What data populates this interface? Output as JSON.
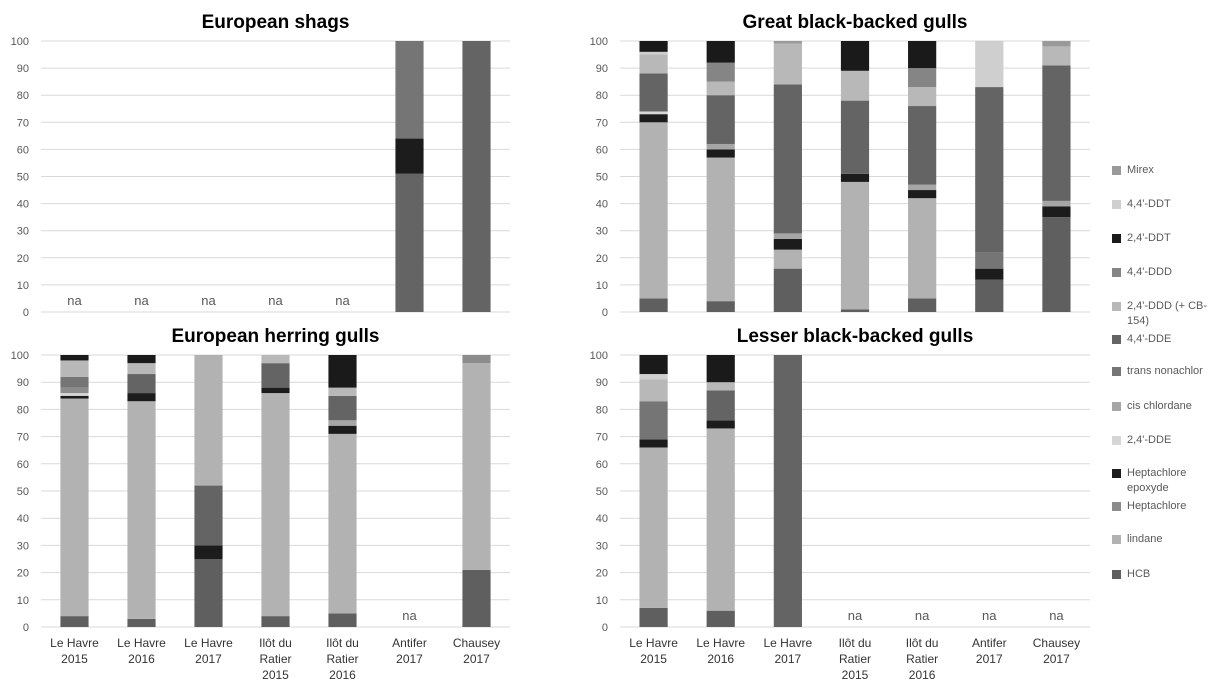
{
  "colors": {
    "HCB": "#5f5f5f",
    "lindane": "#b2b2b2",
    "Heptachlore": "#8c8c8c",
    "Heptachlore epoxyde": "#1c1c1c",
    "2,4'-DDE": "#d6d6d6",
    "cis chlordane": "#a6a6a6",
    "trans nonachlor": "#757575",
    "4,4'-DDE": "#646464",
    "2,4'-DDD (+ CB-154)": "#b8b8b8",
    "4,4'-DDD": "#858585",
    "2,4'-DDT": "#1a1a1a",
    "4,4'-DDT": "#cfcfcf",
    "Mirex": "#9a9a9a",
    "text": "#595959",
    "title": "#000000",
    "grid": "#d9d9d9"
  },
  "legend": [
    {
      "key": "Mirex",
      "label": "Mirex"
    },
    {
      "key": "4,4'-DDT",
      "label": "4,4'-DDT"
    },
    {
      "key": "2,4'-DDT",
      "label": "2,4'-DDT"
    },
    {
      "key": "4,4'-DDD",
      "label": "4,4'-DDD"
    },
    {
      "key": "2,4'-DDD (+ CB-154)",
      "label": "2,4'-DDD (+ CB-154)"
    },
    {
      "key": "4,4'-DDE",
      "label": "4,4'-DDE"
    },
    {
      "key": "trans nonachlor",
      "label": "trans nonachlor"
    },
    {
      "key": "cis chlordane",
      "label": "cis chlordane"
    },
    {
      "key": "2,4'-DDE",
      "label": "2,4'-DDE"
    },
    {
      "key": "Heptachlore epoxyde",
      "label": "Heptachlore epoxyde"
    },
    {
      "key": "Heptachlore",
      "label": "Heptachlore"
    },
    {
      "key": "lindane",
      "label": "lindane"
    },
    {
      "key": "HCB",
      "label": "HCB"
    }
  ],
  "chart_data": [
    {
      "type": "bar",
      "stacked": true,
      "title": "European shags",
      "ylim": [
        0,
        100
      ],
      "yticks": [
        0,
        10,
        20,
        30,
        40,
        50,
        60,
        70,
        80,
        90,
        100
      ],
      "grid": true,
      "legend_position": "right",
      "categories": [
        "Le Havre 2015",
        "Le Havre 2016",
        "Le Havre 2017",
        "Ilôt du Ratier 2015",
        "Ilôt du Ratier 2016",
        "Antifer 2017",
        "Chausey 2017"
      ],
      "show_xlabels": false,
      "na_label": "na",
      "bars": [
        {
          "category": "Le Havre 2015",
          "na": true,
          "segments": []
        },
        {
          "category": "Le Havre 2016",
          "na": true,
          "segments": []
        },
        {
          "category": "Le Havre 2017",
          "na": true,
          "segments": []
        },
        {
          "category": "Ilôt du Ratier 2015",
          "na": true,
          "segments": []
        },
        {
          "category": "Ilôt du Ratier 2016",
          "na": true,
          "segments": []
        },
        {
          "category": "Antifer 2017",
          "na": false,
          "segments": [
            {
              "series": "4,4'-DDE",
              "value": 51
            },
            {
              "series": "Heptachlore epoxyde",
              "value": 13
            },
            {
              "series": "trans nonachlor",
              "value": 36
            }
          ]
        },
        {
          "category": "Chausey 2017",
          "na": false,
          "segments": [
            {
              "series": "4,4'-DDE",
              "value": 100
            }
          ]
        }
      ]
    },
    {
      "type": "bar",
      "stacked": true,
      "title": "Great black-backed gulls",
      "ylim": [
        0,
        100
      ],
      "yticks": [
        0,
        10,
        20,
        30,
        40,
        50,
        60,
        70,
        80,
        90,
        100
      ],
      "grid": true,
      "legend_position": "right",
      "categories": [
        "Le Havre 2015",
        "Le Havre 2016",
        "Le Havre 2017",
        "Ilôt du Ratier 2015",
        "Ilôt du Ratier 2016",
        "Antifer 2017",
        "Chausey 2017"
      ],
      "show_xlabels": false,
      "na_label": "na",
      "bars": [
        {
          "category": "Le Havre 2015",
          "na": false,
          "segments": [
            {
              "series": "HCB",
              "value": 5
            },
            {
              "series": "lindane",
              "value": 65
            },
            {
              "series": "Heptachlore epoxyde",
              "value": 3
            },
            {
              "series": "2,4'-DDE",
              "value": 1
            },
            {
              "series": "4,4'-DDE",
              "value": 14
            },
            {
              "series": "2,4'-DDD (+ CB-154)",
              "value": 7
            },
            {
              "series": "4,4'-DDT",
              "value": 1
            },
            {
              "series": "2,4'-DDT",
              "value": 4
            }
          ]
        },
        {
          "category": "Le Havre 2016",
          "na": false,
          "segments": [
            {
              "series": "HCB",
              "value": 4
            },
            {
              "series": "lindane",
              "value": 53
            },
            {
              "series": "Heptachlore epoxyde",
              "value": 3
            },
            {
              "series": "cis chlordane",
              "value": 2
            },
            {
              "series": "4,4'-DDE",
              "value": 18
            },
            {
              "series": "2,4'-DDD (+ CB-154)",
              "value": 5
            },
            {
              "series": "4,4'-DDD",
              "value": 7
            },
            {
              "series": "2,4'-DDT",
              "value": 8
            }
          ]
        },
        {
          "category": "Le Havre 2017",
          "na": false,
          "segments": [
            {
              "series": "HCB",
              "value": 16
            },
            {
              "series": "lindane",
              "value": 7
            },
            {
              "series": "Heptachlore epoxyde",
              "value": 4
            },
            {
              "series": "cis chlordane",
              "value": 2
            },
            {
              "series": "4,4'-DDE",
              "value": 55
            },
            {
              "series": "2,4'-DDD (+ CB-154)",
              "value": 15
            },
            {
              "series": "Mirex",
              "value": 1
            }
          ]
        },
        {
          "category": "Ilôt du Ratier 2015",
          "na": false,
          "segments": [
            {
              "series": "HCB",
              "value": 1
            },
            {
              "series": "lindane",
              "value": 47
            },
            {
              "series": "Heptachlore epoxyde",
              "value": 3
            },
            {
              "series": "4,4'-DDE",
              "value": 27
            },
            {
              "series": "2,4'-DDD (+ CB-154)",
              "value": 11
            },
            {
              "series": "2,4'-DDT",
              "value": 11
            }
          ]
        },
        {
          "category": "Ilôt du Ratier 2016",
          "na": false,
          "segments": [
            {
              "series": "HCB",
              "value": 5
            },
            {
              "series": "lindane",
              "value": 37
            },
            {
              "series": "Heptachlore epoxyde",
              "value": 3
            },
            {
              "series": "cis chlordane",
              "value": 2
            },
            {
              "series": "4,4'-DDE",
              "value": 29
            },
            {
              "series": "2,4'-DDD (+ CB-154)",
              "value": 7
            },
            {
              "series": "4,4'-DDD",
              "value": 7
            },
            {
              "series": "2,4'-DDT",
              "value": 10
            }
          ]
        },
        {
          "category": "Antifer 2017",
          "na": false,
          "segments": [
            {
              "series": "HCB",
              "value": 12
            },
            {
              "series": "Heptachlore epoxyde",
              "value": 4
            },
            {
              "series": "trans nonachlor",
              "value": 6
            },
            {
              "series": "4,4'-DDE",
              "value": 61
            },
            {
              "series": "4,4'-DDT",
              "value": 17
            }
          ]
        },
        {
          "category": "Chausey 2017",
          "na": false,
          "segments": [
            {
              "series": "HCB",
              "value": 35
            },
            {
              "series": "Heptachlore epoxyde",
              "value": 4
            },
            {
              "series": "cis chlordane",
              "value": 2
            },
            {
              "series": "4,4'-DDE",
              "value": 50
            },
            {
              "series": "2,4'-DDD (+ CB-154)",
              "value": 7
            },
            {
              "series": "Mirex",
              "value": 2
            }
          ]
        }
      ]
    },
    {
      "type": "bar",
      "stacked": true,
      "title": "European herring gulls",
      "ylim": [
        0,
        100
      ],
      "yticks": [
        0,
        10,
        20,
        30,
        40,
        50,
        60,
        70,
        80,
        90,
        100
      ],
      "grid": true,
      "legend_position": "right",
      "categories": [
        "Le Havre 2015",
        "Le Havre 2016",
        "Le Havre 2017",
        "Ilôt du Ratier 2015",
        "Ilôt du Ratier 2016",
        "Antifer 2017",
        "Chausey 2017"
      ],
      "xlabels": [
        [
          "Le Havre",
          "2015"
        ],
        [
          "Le Havre",
          "2016"
        ],
        [
          "Le Havre",
          "2017"
        ],
        [
          "Ilôt du",
          "Ratier",
          "2015"
        ],
        [
          "Ilôt du",
          "Ratier",
          "2016"
        ],
        [
          "Antifer",
          "2017"
        ],
        [
          "Chausey",
          "2017"
        ]
      ],
      "show_xlabels": true,
      "na_label": "na",
      "bars": [
        {
          "category": "Le Havre 2015",
          "na": false,
          "segments": [
            {
              "series": "HCB",
              "value": 4
            },
            {
              "series": "lindane",
              "value": 80
            },
            {
              "series": "Heptachlore epoxyde",
              "value": 1
            },
            {
              "series": "2,4'-DDE",
              "value": 1
            },
            {
              "series": "Heptachlore",
              "value": 2
            },
            {
              "series": "trans nonachlor",
              "value": 4
            },
            {
              "series": "2,4'-DDD (+ CB-154)",
              "value": 6
            },
            {
              "series": "4,4'-DDT",
              "value": 0
            },
            {
              "series": "2,4'-DDT",
              "value": 2
            }
          ]
        },
        {
          "category": "Le Havre 2016",
          "na": false,
          "segments": [
            {
              "series": "HCB",
              "value": 3
            },
            {
              "series": "lindane",
              "value": 80
            },
            {
              "series": "Heptachlore epoxyde",
              "value": 3
            },
            {
              "series": "4,4'-DDE",
              "value": 7
            },
            {
              "series": "2,4'-DDD (+ CB-154)",
              "value": 4
            },
            {
              "series": "2,4'-DDT",
              "value": 3
            }
          ]
        },
        {
          "category": "Le Havre 2017",
          "na": false,
          "segments": [
            {
              "series": "HCB",
              "value": 25
            },
            {
              "series": "Heptachlore epoxyde",
              "value": 5
            },
            {
              "series": "4,4'-DDE",
              "value": 22
            },
            {
              "series": "lindane",
              "value": 48
            }
          ]
        },
        {
          "category": "Ilôt du Ratier 2015",
          "na": false,
          "segments": [
            {
              "series": "HCB",
              "value": 4
            },
            {
              "series": "lindane",
              "value": 82
            },
            {
              "series": "Heptachlore epoxyde",
              "value": 2
            },
            {
              "series": "4,4'-DDE",
              "value": 9
            },
            {
              "series": "2,4'-DDD (+ CB-154)",
              "value": 3
            }
          ]
        },
        {
          "category": "Ilôt du Ratier 2016",
          "na": false,
          "segments": [
            {
              "series": "HCB",
              "value": 5
            },
            {
              "series": "lindane",
              "value": 66
            },
            {
              "series": "Heptachlore epoxyde",
              "value": 3
            },
            {
              "series": "cis chlordane",
              "value": 2
            },
            {
              "series": "4,4'-DDE",
              "value": 9
            },
            {
              "series": "2,4'-DDD (+ CB-154)",
              "value": 3
            },
            {
              "series": "2,4'-DDT",
              "value": 12
            }
          ]
        },
        {
          "category": "Antifer 2017",
          "na": true,
          "segments": []
        },
        {
          "category": "Chausey 2017",
          "na": false,
          "segments": [
            {
              "series": "HCB",
              "value": 21
            },
            {
              "series": "lindane",
              "value": 76
            },
            {
              "series": "Heptachlore",
              "value": 3
            }
          ]
        }
      ]
    },
    {
      "type": "bar",
      "stacked": true,
      "title": "Lesser black-backed gulls",
      "ylim": [
        0,
        100
      ],
      "yticks": [
        0,
        10,
        20,
        30,
        40,
        50,
        60,
        70,
        80,
        90,
        100
      ],
      "grid": true,
      "legend_position": "right",
      "categories": [
        "Le Havre 2015",
        "Le Havre 2016",
        "Le Havre 2017",
        "Ilôt du Ratier 2015",
        "Ilôt du Ratier 2016",
        "Antifer 2017",
        "Chausey 2017"
      ],
      "xlabels": [
        [
          "Le Havre",
          "2015"
        ],
        [
          "Le Havre",
          "2016"
        ],
        [
          "Le Havre",
          "2017"
        ],
        [
          "Ilôt du",
          "Ratier",
          "2015"
        ],
        [
          "Ilôt du",
          "Ratier",
          "2016"
        ],
        [
          "Antifer",
          "2017"
        ],
        [
          "Chausey",
          "2017"
        ]
      ],
      "show_xlabels": true,
      "na_label": "na",
      "bars": [
        {
          "category": "Le Havre 2015",
          "na": false,
          "segments": [
            {
              "series": "HCB",
              "value": 7
            },
            {
              "series": "lindane",
              "value": 59
            },
            {
              "series": "Heptachlore epoxyde",
              "value": 3
            },
            {
              "series": "trans nonachlor",
              "value": 14
            },
            {
              "series": "2,4'-DDD (+ CB-154)",
              "value": 8
            },
            {
              "series": "4,4'-DDT",
              "value": 2
            },
            {
              "series": "2,4'-DDT",
              "value": 7
            }
          ]
        },
        {
          "category": "Le Havre 2016",
          "na": false,
          "segments": [
            {
              "series": "HCB",
              "value": 6
            },
            {
              "series": "lindane",
              "value": 67
            },
            {
              "series": "Heptachlore epoxyde",
              "value": 3
            },
            {
              "series": "4,4'-DDE",
              "value": 11
            },
            {
              "series": "2,4'-DDD (+ CB-154)",
              "value": 3
            },
            {
              "series": "2,4'-DDT",
              "value": 10
            }
          ]
        },
        {
          "category": "Le Havre 2017",
          "na": false,
          "segments": [
            {
              "series": "4,4'-DDE",
              "value": 100
            }
          ]
        },
        {
          "category": "Ilôt du Ratier 2015",
          "na": true,
          "segments": []
        },
        {
          "category": "Ilôt du Ratier 2016",
          "na": true,
          "segments": []
        },
        {
          "category": "Antifer 2017",
          "na": true,
          "segments": []
        },
        {
          "category": "Chausey 2017",
          "na": true,
          "segments": []
        }
      ]
    }
  ]
}
